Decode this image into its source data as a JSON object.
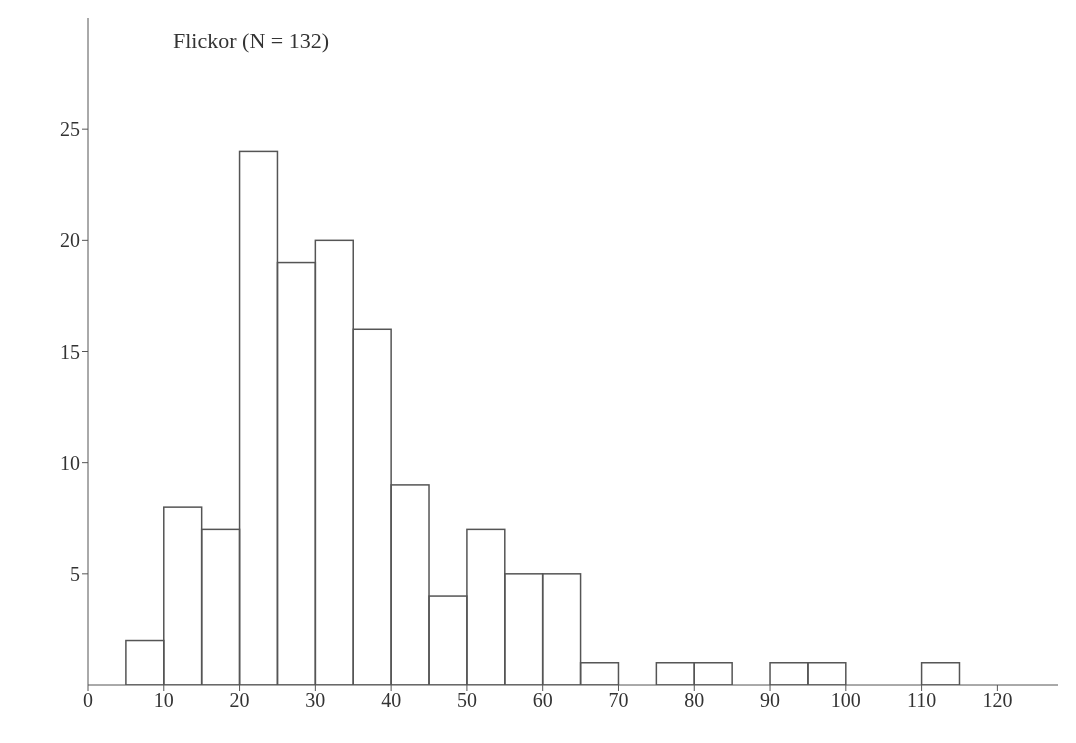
{
  "chart_data": {
    "type": "histogram",
    "title": "Flickor (N = 132)",
    "bins": [
      5,
      10,
      15,
      20,
      25,
      30,
      35,
      40,
      45,
      50,
      55,
      60,
      65,
      70,
      75,
      80,
      85,
      90,
      95,
      100,
      105,
      110,
      115
    ],
    "values": [
      2,
      8,
      7,
      24,
      19,
      20,
      16,
      9,
      4,
      7,
      5,
      5,
      1,
      0,
      1,
      1,
      0,
      1,
      1,
      0,
      0,
      1
    ],
    "color": "#555555",
    "xlim": [
      0,
      128
    ],
    "xticks": [
      0,
      10,
      20,
      30,
      40,
      50,
      60,
      70,
      80,
      90,
      100,
      110,
      120
    ],
    "ylim": [
      0,
      30
    ],
    "yticks": [
      5,
      10,
      15,
      20,
      25
    ],
    "grid": false
  }
}
